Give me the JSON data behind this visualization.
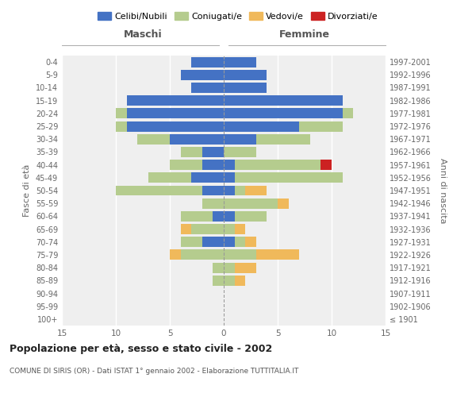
{
  "age_groups": [
    "100+",
    "95-99",
    "90-94",
    "85-89",
    "80-84",
    "75-79",
    "70-74",
    "65-69",
    "60-64",
    "55-59",
    "50-54",
    "45-49",
    "40-44",
    "35-39",
    "30-34",
    "25-29",
    "20-24",
    "15-19",
    "10-14",
    "5-9",
    "0-4"
  ],
  "birth_years": [
    "≤ 1901",
    "1902-1906",
    "1907-1911",
    "1912-1916",
    "1917-1921",
    "1922-1926",
    "1927-1931",
    "1932-1936",
    "1937-1941",
    "1942-1946",
    "1947-1951",
    "1952-1956",
    "1957-1961",
    "1962-1966",
    "1967-1971",
    "1972-1976",
    "1977-1981",
    "1982-1986",
    "1987-1991",
    "1992-1996",
    "1997-2001"
  ],
  "male": {
    "celibi": [
      0,
      0,
      0,
      0,
      0,
      0,
      2,
      0,
      1,
      0,
      2,
      3,
      2,
      2,
      5,
      9,
      9,
      9,
      3,
      4,
      3
    ],
    "coniugati": [
      0,
      0,
      0,
      1,
      1,
      4,
      2,
      3,
      3,
      2,
      8,
      4,
      3,
      2,
      3,
      1,
      1,
      0,
      0,
      0,
      0
    ],
    "vedovi": [
      0,
      0,
      0,
      0,
      0,
      1,
      0,
      1,
      0,
      0,
      0,
      0,
      0,
      0,
      0,
      0,
      0,
      0,
      0,
      0,
      0
    ],
    "divorziati": [
      0,
      0,
      0,
      0,
      0,
      0,
      0,
      0,
      0,
      0,
      0,
      0,
      0,
      0,
      0,
      0,
      0,
      0,
      0,
      0,
      0
    ]
  },
  "female": {
    "nubili": [
      0,
      0,
      0,
      0,
      0,
      0,
      1,
      0,
      1,
      0,
      1,
      1,
      1,
      0,
      3,
      7,
      11,
      11,
      4,
      4,
      3
    ],
    "coniugate": [
      0,
      0,
      0,
      1,
      1,
      3,
      1,
      1,
      3,
      5,
      1,
      10,
      8,
      3,
      5,
      4,
      1,
      0,
      0,
      0,
      0
    ],
    "vedove": [
      0,
      0,
      0,
      1,
      2,
      4,
      1,
      1,
      0,
      1,
      2,
      0,
      0,
      0,
      0,
      0,
      0,
      0,
      0,
      0,
      0
    ],
    "divorziate": [
      0,
      0,
      0,
      0,
      0,
      0,
      0,
      0,
      0,
      0,
      0,
      0,
      1,
      0,
      0,
      0,
      0,
      0,
      0,
      0,
      0
    ]
  },
  "colors": {
    "celibi": "#4472c4",
    "coniugati": "#b5cc8e",
    "vedovi": "#f0b95b",
    "divorziati": "#cc2222"
  },
  "xlim": 15,
  "title": "Popolazione per età, sesso e stato civile - 2002",
  "subtitle": "COMUNE DI SIRIS (OR) - Dati ISTAT 1° gennaio 2002 - Elaborazione TUTTITALIA.IT",
  "ylabel_left": "Fasce di età",
  "ylabel_right": "Anni di nascita",
  "xlabel_left": "Maschi",
  "xlabel_right": "Femmine",
  "legend_labels": [
    "Celibi/Nubili",
    "Coniugati/e",
    "Vedovi/e",
    "Divorziati/e"
  ],
  "bg_color": "#ffffff",
  "plot_bg": "#efefef",
  "grid_color": "#ffffff",
  "bar_height": 0.8
}
